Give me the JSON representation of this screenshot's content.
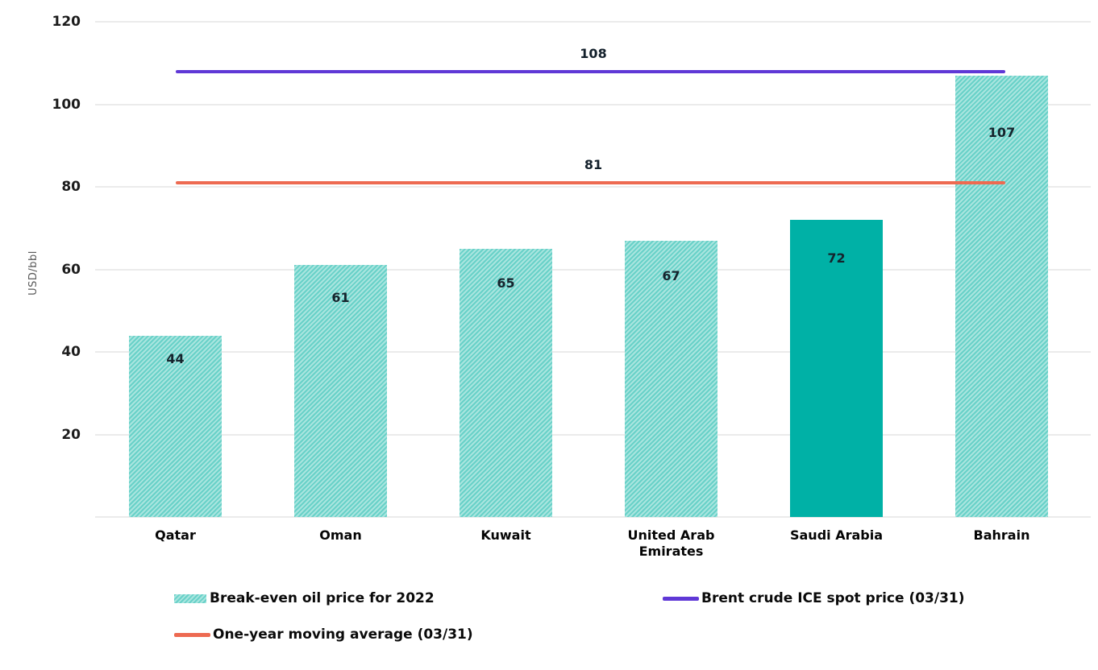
{
  "chart_data": {
    "type": "bar",
    "title": "",
    "xlabel": "",
    "ylabel": "USD/bbl",
    "ylim": [
      0,
      120
    ],
    "yticks": [
      20,
      40,
      60,
      80,
      100,
      120
    ],
    "grid": true,
    "legend_position": "bottom",
    "categories": [
      "Qatar",
      "Oman",
      "Kuwait",
      "United Arab Emirates",
      "Saudi Arabia",
      "Bahrain"
    ],
    "series": [
      {
        "name": "Break-even oil price for 2022",
        "values": [
          44,
          61,
          65,
          67,
          72,
          107
        ],
        "bar_styles": [
          "hatch",
          "hatch",
          "hatch",
          "hatch",
          "solid",
          "hatch"
        ],
        "hatch_color_dark": "#68d1c8",
        "hatch_color_light": "#a9e5df",
        "solid_color": "#00b1a6"
      }
    ],
    "lines": [
      {
        "name": "Brent crude ICE spot price (03/31)",
        "value": 108,
        "color": "#5f38d6"
      },
      {
        "name": "One-year moving average (03/31)",
        "value": 81,
        "color": "#ed6a51"
      }
    ],
    "value_label_color": "#15242d",
    "grid_color": "#ebebeb"
  }
}
